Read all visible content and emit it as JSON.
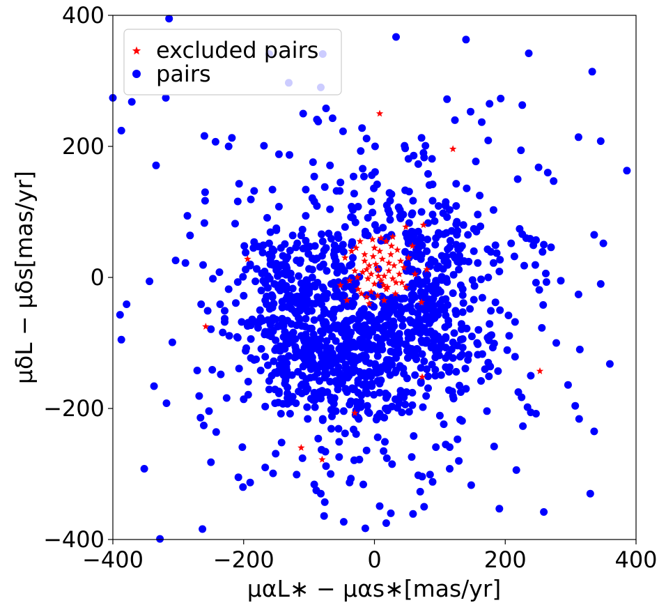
{
  "chart_data": {
    "type": "scatter",
    "title": "",
    "xlabel": "μαL∗ − μαs∗[mas/yr]",
    "ylabel": "μδL − μδs[mas/yr]",
    "xlim": [
      -400,
      400
    ],
    "ylim": [
      -400,
      400
    ],
    "xticks": [
      "−400",
      "−200",
      "0",
      "200",
      "400"
    ],
    "yticks": [
      "−400",
      "−200",
      "0",
      "200",
      "400"
    ],
    "grid": false,
    "legend_position": "top-left",
    "series": [
      {
        "name": "excluded pairs",
        "marker": "star",
        "color": "#ff0000",
        "points": [
          [
            8,
            250
          ],
          [
            120,
            196
          ],
          [
            -194,
            28
          ],
          [
            -258,
            -75
          ],
          [
            253,
            -143
          ],
          [
            73,
            -152
          ],
          [
            -30,
            -207
          ],
          [
            -112,
            -260
          ],
          [
            -80,
            -278
          ],
          [
            48,
            77
          ],
          [
            75,
            80
          ],
          [
            58,
            48
          ],
          [
            80,
            12
          ],
          [
            72,
            -38
          ],
          [
            -52,
            -12
          ],
          [
            -45,
            30
          ],
          [
            -35,
            40
          ],
          [
            -28,
            45
          ],
          [
            -18,
            8
          ],
          [
            -15,
            25
          ],
          [
            -10,
            -2
          ],
          [
            -8,
            18
          ],
          [
            -5,
            5
          ],
          [
            -2,
            32
          ],
          [
            0,
            -10
          ],
          [
            2,
            20
          ],
          [
            5,
            12
          ],
          [
            8,
            40
          ],
          [
            10,
            -5
          ],
          [
            12,
            28
          ],
          [
            15,
            2
          ],
          [
            18,
            55
          ],
          [
            20,
            -15
          ],
          [
            22,
            10
          ],
          [
            25,
            35
          ],
          [
            28,
            -2
          ],
          [
            30,
            18
          ],
          [
            32,
            -25
          ],
          [
            35,
            42
          ],
          [
            38,
            5
          ],
          [
            40,
            25
          ],
          [
            42,
            -8
          ],
          [
            45,
            15
          ],
          [
            -25,
            -18
          ],
          [
            -20,
            -25
          ],
          [
            -12,
            -30
          ],
          [
            -5,
            -22
          ],
          [
            5,
            -28
          ],
          [
            15,
            -35
          ],
          [
            -30,
            10
          ],
          [
            -38,
            -5
          ],
          [
            0,
            45
          ],
          [
            10,
            60
          ],
          [
            -22,
            55
          ],
          [
            26,
            48
          ],
          [
            -8,
            -40
          ],
          [
            48,
            -15
          ],
          [
            -15,
            35
          ],
          [
            52,
            30
          ],
          [
            62,
            5
          ],
          [
            33,
            -8
          ],
          [
            -42,
            -35
          ],
          [
            18,
            -18
          ],
          [
            -3,
            58
          ],
          [
            28,
            62
          ],
          [
            6,
            2
          ],
          [
            -12,
            12
          ],
          [
            14,
            -12
          ],
          [
            22,
            22
          ],
          [
            -26,
            0
          ]
        ]
      },
      {
        "name": "pairs",
        "marker": "circle",
        "color": "#0000ff",
        "points": []
      }
    ]
  }
}
